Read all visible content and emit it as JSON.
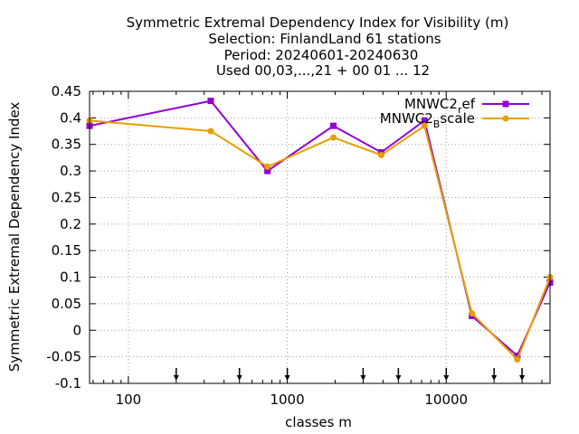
{
  "chart_data": {
    "type": "line",
    "title_lines": [
      "Symmetric Extremal Dependency Index  for Visibility (m)",
      "Selection: FinlandLand     61 stations",
      "Period: 20240601-20240630",
      "Used 00,03,...,21 + 00 01 ... 12"
    ],
    "xlabel": "classes m",
    "ylabel": "Symmetric Extremal Dependency Index",
    "x_scale": "log",
    "xlim": [
      57,
      45000
    ],
    "ylim": [
      -0.1,
      0.45
    ],
    "x_ticks": [
      100,
      1000,
      10000
    ],
    "x_tick_labels": [
      "100",
      "1000",
      "10000"
    ],
    "y_ticks": [
      -0.1,
      -0.05,
      0,
      0.05,
      0.1,
      0.15,
      0.2,
      0.25,
      0.3,
      0.35,
      0.4,
      0.45
    ],
    "y_tick_labels": [
      "-0.1",
      "-0.05",
      "0",
      "0.05",
      "0.1",
      "0.15",
      "0.2",
      "0.25",
      "0.3",
      "0.35",
      "0.4",
      "0.45"
    ],
    "grid": true,
    "legend_position": "top-right",
    "threshold_markers_x": [
      200,
      500,
      1000,
      3000,
      5000,
      10000,
      20000,
      30000
    ],
    "series": [
      {
        "name_main": "MNWC2",
        "name_sub": "r",
        "name_tail": "ef",
        "color": "#9400d3",
        "marker": "filled-square",
        "x": [
          57,
          330,
          750,
          1950,
          3900,
          7300,
          14500,
          28000,
          45000
        ],
        "y": [
          0.385,
          0.432,
          0.3,
          0.385,
          0.335,
          0.395,
          0.027,
          -0.048,
          0.09
        ]
      },
      {
        "name_main": "MNWC2",
        "name_sub": "B",
        "name_tail": "scale",
        "color": "#e69f00",
        "marker": "filled-circle",
        "x": [
          57,
          330,
          750,
          1950,
          3900,
          7300,
          14500,
          28000,
          45000
        ],
        "y": [
          0.395,
          0.375,
          0.308,
          0.363,
          0.33,
          0.385,
          0.032,
          -0.055,
          0.1
        ]
      }
    ]
  }
}
